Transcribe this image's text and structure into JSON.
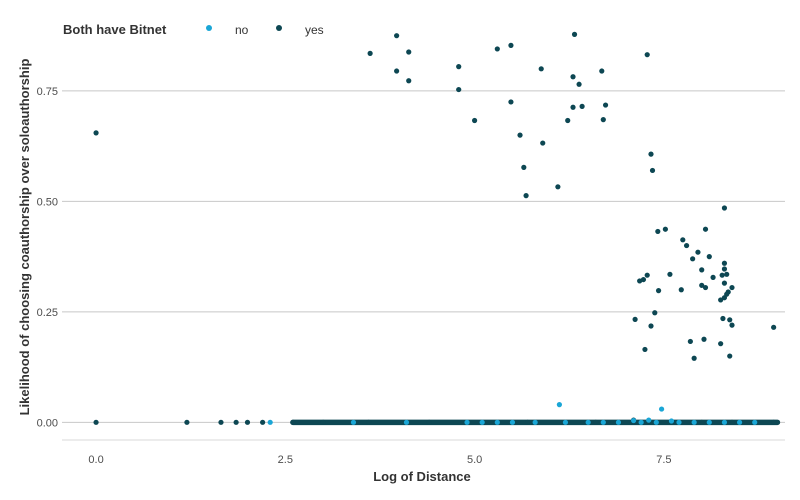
{
  "chart_data": {
    "type": "scatter",
    "title": "",
    "xlabel": "Log of Distance",
    "ylabel": "Likelihood of choosing coauthorship over soloauthorship",
    "xlim": [
      -0.45,
      9.1
    ],
    "ylim": [
      -0.04,
      0.915
    ],
    "x_ticks": [
      0.0,
      2.5,
      5.0,
      7.5
    ],
    "x_tick_labels": [
      "0.0",
      "2.5",
      "5.0",
      "7.5"
    ],
    "y_ticks": [
      0.0,
      0.25,
      0.5,
      0.75
    ],
    "y_tick_labels": [
      "0.00",
      "0.25",
      "0.50",
      "0.75"
    ],
    "grid": "horizontal major lines",
    "legend": {
      "title": "Both have Bitnet",
      "placement": "top-left"
    },
    "series": [
      {
        "name": "no",
        "color": "#1aa6d6",
        "points": [
          [
            6.12,
            0.04
          ],
          [
            7.47,
            0.03
          ],
          [
            7.3,
            0.005
          ],
          [
            7.1,
            0.004
          ],
          [
            7.6,
            0.003
          ],
          [
            2.3,
            0.0
          ],
          [
            3.4,
            0.0
          ],
          [
            4.1,
            0.0
          ],
          [
            4.9,
            0.0
          ],
          [
            5.1,
            0.0
          ],
          [
            5.3,
            0.0
          ],
          [
            5.5,
            0.0
          ],
          [
            5.8,
            0.0
          ],
          [
            6.2,
            0.0
          ],
          [
            6.5,
            0.0
          ],
          [
            6.7,
            0.0
          ],
          [
            6.9,
            0.0
          ],
          [
            7.2,
            0.0
          ],
          [
            7.4,
            0.0
          ],
          [
            7.7,
            0.0
          ],
          [
            7.9,
            0.0
          ],
          [
            8.1,
            0.0
          ],
          [
            8.3,
            0.0
          ],
          [
            8.5,
            0.0
          ],
          [
            8.7,
            0.0
          ]
        ]
      },
      {
        "name": "yes",
        "color": "#0d4753",
        "points": [
          [
            0.0,
            0.655
          ],
          [
            0.0,
            0.0
          ],
          [
            1.2,
            0.0
          ],
          [
            3.62,
            0.835
          ],
          [
            3.97,
            0.875
          ],
          [
            3.97,
            0.795
          ],
          [
            4.13,
            0.838
          ],
          [
            4.13,
            0.773
          ],
          [
            4.79,
            0.805
          ],
          [
            4.79,
            0.753
          ],
          [
            5.0,
            0.683
          ],
          [
            5.3,
            0.845
          ],
          [
            5.48,
            0.853
          ],
          [
            5.48,
            0.725
          ],
          [
            5.6,
            0.65
          ],
          [
            5.65,
            0.577
          ],
          [
            5.68,
            0.513
          ],
          [
            5.88,
            0.8
          ],
          [
            5.9,
            0.632
          ],
          [
            6.1,
            0.533
          ],
          [
            6.23,
            0.683
          ],
          [
            6.3,
            0.782
          ],
          [
            6.32,
            0.878
          ],
          [
            6.3,
            0.713
          ],
          [
            6.38,
            0.765
          ],
          [
            6.42,
            0.715
          ],
          [
            6.68,
            0.795
          ],
          [
            6.7,
            0.685
          ],
          [
            6.73,
            0.718
          ],
          [
            7.28,
            0.832
          ],
          [
            7.33,
            0.607
          ],
          [
            7.35,
            0.57
          ],
          [
            7.42,
            0.432
          ],
          [
            7.52,
            0.437
          ],
          [
            7.43,
            0.298
          ],
          [
            7.23,
            0.323
          ],
          [
            7.18,
            0.32
          ],
          [
            7.28,
            0.333
          ],
          [
            7.33,
            0.218
          ],
          [
            7.38,
            0.248
          ],
          [
            7.12,
            0.233
          ],
          [
            7.25,
            0.165
          ],
          [
            7.58,
            0.335
          ],
          [
            7.75,
            0.413
          ],
          [
            7.8,
            0.4
          ],
          [
            7.88,
            0.37
          ],
          [
            7.95,
            0.385
          ],
          [
            8.05,
            0.437
          ],
          [
            8.1,
            0.375
          ],
          [
            8.0,
            0.345
          ],
          [
            8.0,
            0.31
          ],
          [
            8.05,
            0.305
          ],
          [
            7.73,
            0.3
          ],
          [
            7.85,
            0.183
          ],
          [
            7.9,
            0.145
          ],
          [
            8.03,
            0.188
          ],
          [
            8.15,
            0.328
          ],
          [
            8.25,
            0.178
          ],
          [
            8.3,
            0.485
          ],
          [
            8.3,
            0.36
          ],
          [
            8.3,
            0.347
          ],
          [
            8.33,
            0.335
          ],
          [
            8.27,
            0.333
          ],
          [
            8.3,
            0.315
          ],
          [
            8.35,
            0.295
          ],
          [
            8.3,
            0.282
          ],
          [
            8.25,
            0.277
          ],
          [
            8.33,
            0.29
          ],
          [
            8.28,
            0.235
          ],
          [
            8.37,
            0.232
          ],
          [
            8.4,
            0.305
          ],
          [
            8.4,
            0.22
          ],
          [
            8.37,
            0.15
          ],
          [
            8.95,
            0.215
          ],
          [
            1.65,
            0.0
          ],
          [
            1.85,
            0.0
          ],
          [
            2.0,
            0.0
          ],
          [
            2.2,
            0.0
          ],
          [
            2.6,
            0.0
          ],
          [
            3.0,
            0.0
          ],
          [
            3.6,
            0.0
          ],
          [
            4.4,
            0.0
          ],
          [
            5.7,
            0.0
          ],
          [
            6.6,
            0.0
          ],
          [
            7.1,
            0.005
          ],
          [
            8.0,
            0.0
          ],
          [
            8.4,
            0.0
          ],
          [
            8.95,
            0.0
          ]
        ],
        "band_y0": {
          "x_from": 2.6,
          "x_to": 9.0,
          "y": 0.0
        }
      }
    ]
  }
}
